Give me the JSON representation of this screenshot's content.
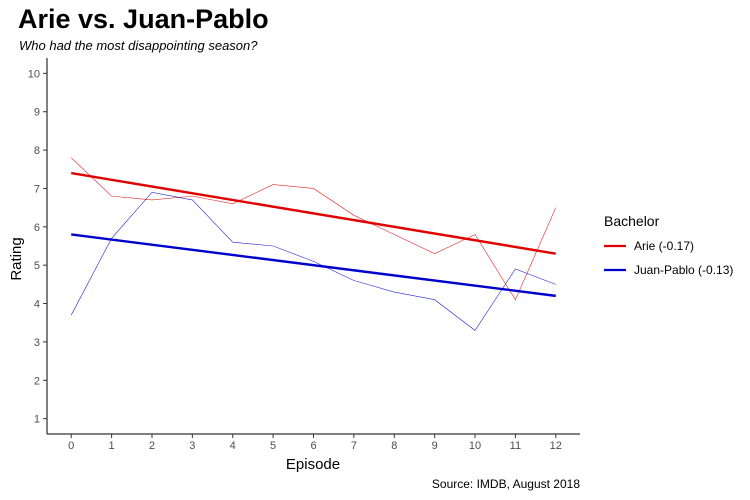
{
  "chart_data": {
    "type": "line",
    "title": "Arie vs. Juan-Pablo",
    "subtitle": "Who had the most disappointing season?",
    "caption": "Source: IMDB, August 2018",
    "xlabel": "Episode",
    "ylabel": "Rating",
    "xlim": [
      -0.6,
      12.6
    ],
    "ylim": [
      0.6,
      10.4
    ],
    "x_ticks": [
      0,
      1,
      2,
      3,
      4,
      5,
      6,
      7,
      8,
      9,
      10,
      11,
      12
    ],
    "y_ticks": [
      1,
      2,
      3,
      4,
      5,
      6,
      7,
      8,
      9,
      10
    ],
    "grid": false,
    "legend_position": "right",
    "legend_title": "Bachelor",
    "x": [
      0,
      1,
      2,
      3,
      4,
      5,
      6,
      7,
      8,
      9,
      10,
      11,
      12
    ],
    "series": [
      {
        "name": "Arie (-0.17)",
        "color": "#e00000",
        "values": [
          7.8,
          6.8,
          6.7,
          6.8,
          6.6,
          7.1,
          7.0,
          6.3,
          5.8,
          5.3,
          5.8,
          4.1,
          6.5
        ],
        "trend": [
          7.4,
          5.3
        ]
      },
      {
        "name": "Juan-Pablo (-0.13)",
        "color": "#0000cc",
        "values": [
          3.7,
          5.7,
          6.9,
          6.7,
          5.6,
          5.5,
          5.1,
          4.6,
          4.3,
          4.1,
          3.3,
          4.9,
          4.5
        ],
        "trend": [
          5.8,
          4.2
        ]
      }
    ]
  }
}
